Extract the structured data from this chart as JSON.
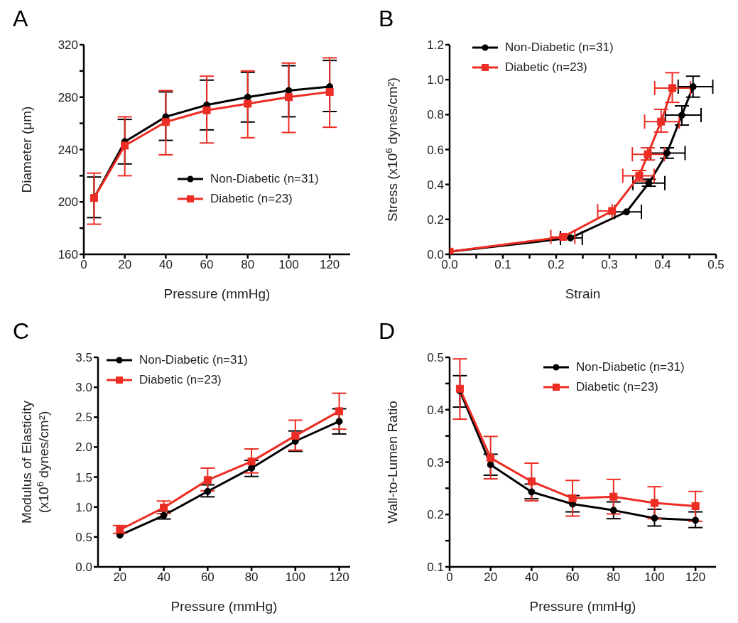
{
  "chart_data": [
    {
      "type": "line",
      "title": "A",
      "xlabel": "Pressure (mmHg)",
      "ylabel": "Diameter (μm)",
      "xlim": [
        0,
        130
      ],
      "xticks": [
        0,
        20,
        40,
        60,
        80,
        100,
        120
      ],
      "ylim": [
        160,
        320
      ],
      "yticks": [
        160,
        {
          "value": 180,
          "label": null
        },
        200,
        {
          "value": 220,
          "label": null
        },
        240,
        {
          "value": 260,
          "label": null
        },
        280,
        {
          "value": 300,
          "label": null
        },
        320
      ],
      "grid": false,
      "legend": "bottom right",
      "x": [
        5,
        20,
        40,
        60,
        80,
        100,
        120
      ],
      "series": [
        {
          "name": "Non-Diabetic (n=31)",
          "color": "#000000",
          "marker": "circle",
          "values": [
            203,
            246,
            265,
            274,
            280,
            285,
            288
          ],
          "errors": [
            [
              188,
              219
            ],
            [
              229,
              263
            ],
            [
              247,
              284
            ],
            [
              255,
              293
            ],
            [
              261,
              299
            ],
            [
              265,
              304
            ],
            [
              269,
              308
            ]
          ]
        },
        {
          "name": "Diabetic (n=23)",
          "color": "#ed2d24",
          "marker": "square",
          "values": [
            203,
            243,
            261,
            270,
            275,
            280,
            284
          ],
          "errors": [
            [
              183,
              222
            ],
            [
              220,
              265
            ],
            [
              236,
              285
            ],
            [
              245,
              296
            ],
            [
              249,
              300
            ],
            [
              253,
              306
            ],
            [
              257,
              310
            ]
          ]
        }
      ]
    },
    {
      "type": "line",
      "title": "B",
      "xlabel": "Strain",
      "ylabel": "Stress (x10$^{6}$ dynes/cm²)",
      "xlim": [
        0,
        0.5
      ],
      "xticks": [
        {
          "value": 0,
          "label": "0.0"
        },
        {
          "value": 0.05,
          "label": null
        },
        0.1,
        {
          "value": 0.15,
          "label": null
        },
        0.2,
        {
          "value": 0.25,
          "label": null
        },
        0.3,
        {
          "value": 0.35,
          "label": null
        },
        0.4,
        {
          "value": 0.45,
          "label": null
        },
        0.5
      ],
      "ylim": [
        0,
        1.2
      ],
      "yticks": [
        {
          "value": 0,
          "label": "0.0"
        },
        0.2,
        0.4,
        0.6,
        0.8,
        {
          "value": 1,
          "label": "1.0"
        },
        1.2
      ],
      "grid": false,
      "legend": "top left",
      "series": [
        {
          "name": "Non-Diabetic (n=31)",
          "color": "#000000",
          "marker": "circle",
          "x": [
            0,
            0.227,
            0.332,
            0.374,
            0.408,
            0.436,
            0.457
          ],
          "values": [
            0.015,
            0.094,
            0.243,
            0.408,
            0.58,
            0.797,
            0.96
          ],
          "errors": [
            null,
            null,
            null,
            [
              0.39,
              0.43
            ],
            [
              0.55,
              0.61
            ],
            [
              0.74,
              0.85
            ],
            [
              0.9,
              1.02
            ]
          ],
          "xerrors": [
            null,
            [
              0.208,
              0.249
            ],
            [
              0.31,
              0.36
            ],
            [
              0.344,
              0.404
            ],
            [
              0.377,
              0.442
            ],
            [
              0.405,
              0.472
            ],
            [
              0.429,
              0.494
            ]
          ]
        },
        {
          "name": "Diabetic (n=23)",
          "color": "#ed2d24",
          "marker": "square",
          "x": [
            0,
            0.213,
            0.305,
            0.356,
            0.372,
            0.397,
            0.418
          ],
          "values": [
            0.015,
            0.1,
            0.248,
            0.45,
            0.573,
            0.76,
            0.952
          ],
          "errors": [
            null,
            null,
            null,
            [
              0.42,
              0.48
            ],
            [
              0.54,
              0.61
            ],
            [
              0.7,
              0.83
            ],
            [
              0.87,
              1.04
            ]
          ],
          "xerrors": [
            null,
            [
              0.19,
              0.235
            ],
            [
              0.278,
              0.305
            ],
            [
              0.325,
              0.384
            ],
            [
              0.343,
              0.403
            ],
            [
              0.366,
              0.431
            ],
            [
              0.385,
              0.452
            ]
          ]
        }
      ]
    },
    {
      "type": "line",
      "title": "C",
      "xlabel": "Pressure (mmHg)",
      "ylabel": "Modulus of Elasticity\n(x10$^{6}$ dynes/cm²)",
      "xlim": [
        10,
        125
      ],
      "xticks": [
        20,
        40,
        60,
        80,
        100,
        120
      ],
      "ylim": [
        0,
        3.5
      ],
      "yticks": [
        {
          "value": 0,
          "label": "0.0"
        },
        0.5,
        {
          "value": 1,
          "label": "1.0"
        },
        1.5,
        {
          "value": 2,
          "label": "2.0"
        },
        2.5,
        {
          "value": 3,
          "label": "3.0"
        },
        3.5
      ],
      "grid": false,
      "legend": "top left",
      "x": [
        20,
        40,
        60,
        80,
        100,
        120
      ],
      "series": [
        {
          "name": "Non-Diabetic (n=31)",
          "color": "#000000",
          "marker": "circle",
          "values": [
            0.53,
            0.86,
            1.26,
            1.65,
            2.1,
            2.43
          ],
          "errors": [
            null,
            [
              0.8,
              0.93
            ],
            [
              1.17,
              1.37
            ],
            [
              1.51,
              1.78
            ],
            [
              1.93,
              2.27
            ],
            [
              2.22,
              2.64
            ]
          ]
        },
        {
          "name": "Diabetic (n=23)",
          "color": "#ed2d24",
          "marker": "square",
          "values": [
            0.62,
            0.99,
            1.45,
            1.76,
            2.19,
            2.6
          ],
          "errors": [
            [
              0.56,
              0.69
            ],
            [
              0.89,
              1.1
            ],
            [
              1.27,
              1.65
            ],
            [
              1.57,
              1.97
            ],
            [
              1.95,
              2.45
            ],
            [
              2.3,
              2.9
            ]
          ]
        }
      ]
    },
    {
      "type": "line",
      "title": "D",
      "xlabel": "Pressure (mmHg)",
      "ylabel": "Wall-to-Lumen Ratio",
      "xlim": [
        0,
        130
      ],
      "xticks": [
        0,
        20,
        40,
        60,
        80,
        100,
        120
      ],
      "ylim": [
        0.1,
        0.5
      ],
      "yticks": [
        0.1,
        {
          "value": 0.15,
          "label": null
        },
        0.2,
        {
          "value": 0.25,
          "label": null
        },
        0.3,
        {
          "value": 0.35,
          "label": null
        },
        0.4,
        {
          "value": 0.45,
          "label": null
        },
        0.5
      ],
      "grid": false,
      "legend": "top right",
      "x": [
        5,
        20,
        40,
        60,
        80,
        100,
        120
      ],
      "series": [
        {
          "name": "Non-Diabetic (n=31)",
          "color": "#000000",
          "marker": "circle",
          "values": [
            0.436,
            0.295,
            0.243,
            0.22,
            0.208,
            0.193,
            0.189
          ],
          "errors": [
            [
              0.405,
              0.465
            ],
            [
              0.275,
              0.315
            ],
            [
              0.23,
              0.258
            ],
            [
              0.205,
              0.236
            ],
            [
              0.192,
              0.224
            ],
            [
              0.178,
              0.21
            ],
            [
              0.175,
              0.205
            ]
          ]
        },
        {
          "name": "Diabetic (n=23)",
          "color": "#ed2d24",
          "marker": "square",
          "values": [
            0.44,
            0.308,
            0.263,
            0.231,
            0.234,
            0.222,
            0.216
          ],
          "errors": [
            [
              0.382,
              0.497
            ],
            [
              0.268,
              0.349
            ],
            [
              0.226,
              0.298
            ],
            [
              0.197,
              0.265
            ],
            [
              0.201,
              0.267
            ],
            [
              0.192,
              0.253
            ],
            [
              0.187,
              0.244
            ]
          ]
        }
      ]
    }
  ]
}
